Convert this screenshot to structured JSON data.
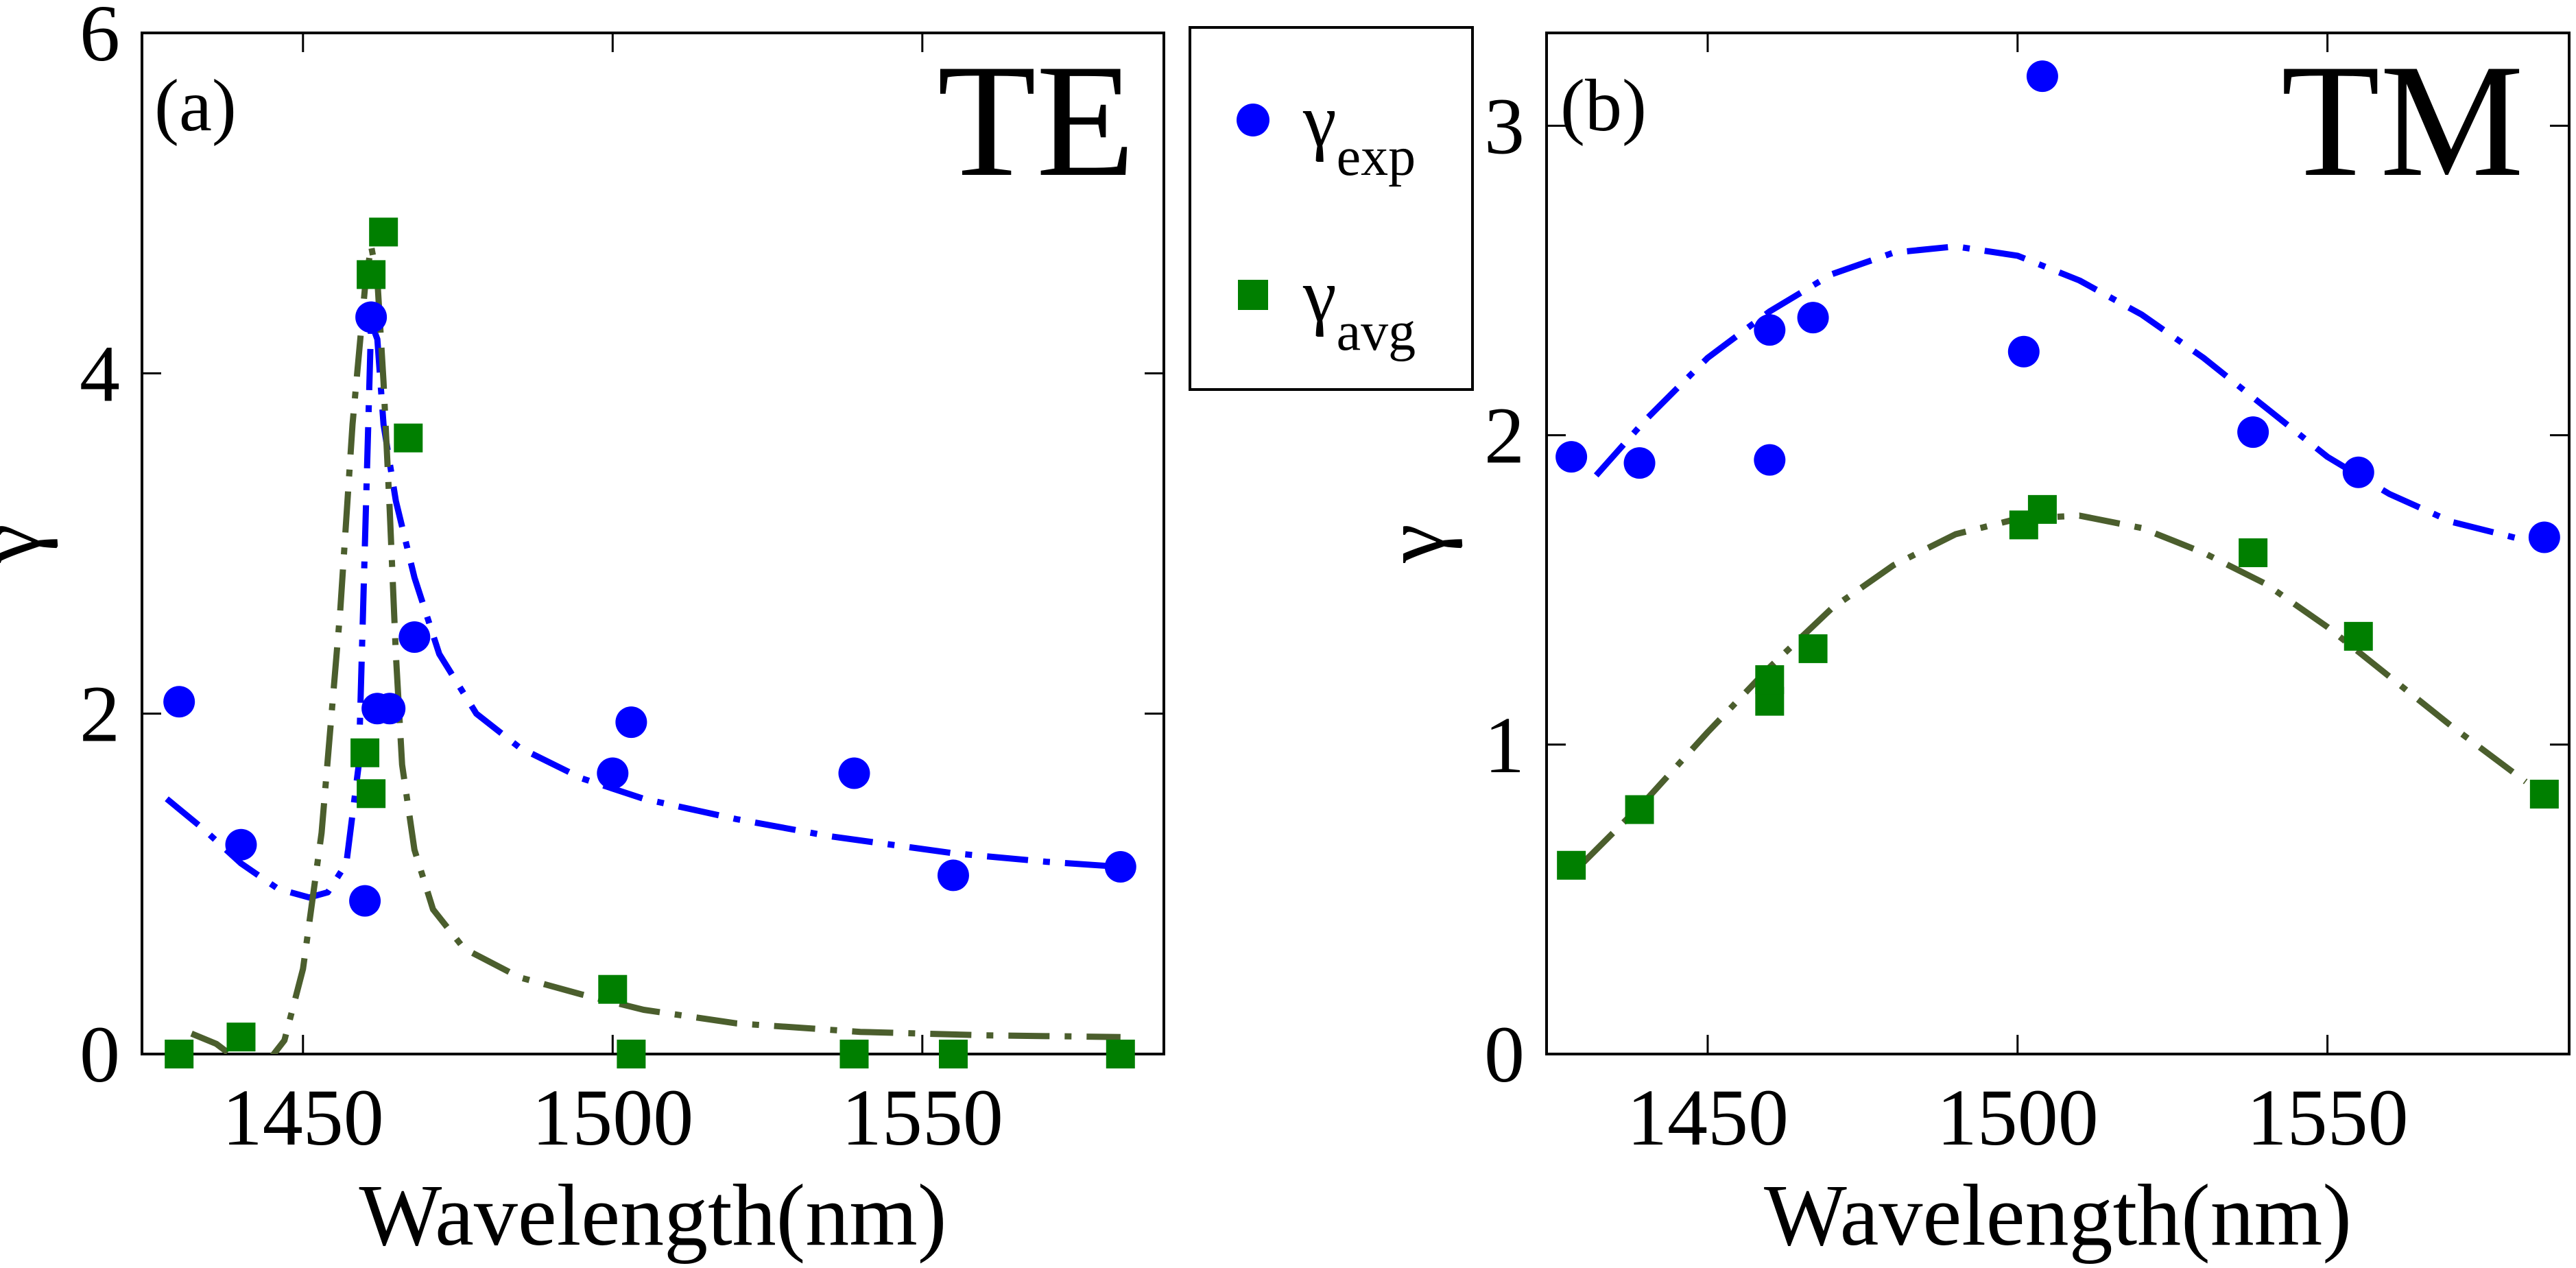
{
  "chart_data": [
    {
      "type": "scatter",
      "panel_tag": "(a)",
      "mode": "TE",
      "xlabel": "Wavelength(nm)",
      "ylabel": "γ",
      "xlim": [
        1424,
        1589
      ],
      "ylim": [
        0,
        6
      ],
      "xticks": [
        1450,
        1500,
        1550
      ],
      "yticks": [
        0,
        2,
        4,
        6
      ],
      "grid": false,
      "series": [
        {
          "name": "γexp",
          "role": "exp",
          "marker": "circle",
          "color": "#0000ff",
          "points": [
            [
              1430,
              2.07
            ],
            [
              1440,
              1.23
            ],
            [
              1460,
              0.9
            ],
            [
              1461,
              4.33
            ],
            [
              1462,
              2.03
            ],
            [
              1464,
              2.03
            ],
            [
              1468,
              2.45
            ],
            [
              1500,
              1.65
            ],
            [
              1503,
              1.95
            ],
            [
              1539,
              1.65
            ],
            [
              1555,
              1.05
            ],
            [
              1582,
              1.1
            ]
          ]
        },
        {
          "name": "γavg",
          "role": "avg",
          "marker": "square",
          "color": "#007f00",
          "points": [
            [
              1430,
              0.0
            ],
            [
              1440,
              0.1
            ],
            [
              1460,
              1.77
            ],
            [
              1461,
              1.53
            ],
            [
              1461,
              4.58
            ],
            [
              1463,
              4.83
            ],
            [
              1467,
              3.62
            ],
            [
              1500,
              0.38
            ],
            [
              1503,
              0.0
            ],
            [
              1539,
              0.0
            ],
            [
              1555,
              0.0
            ],
            [
              1582,
              0.0
            ]
          ]
        }
      ],
      "fits": [
        {
          "color": "#0000ff",
          "style": "dash-dot",
          "points": [
            [
              1428,
              1.5
            ],
            [
              1434,
              1.32
            ],
            [
              1440,
              1.12
            ],
            [
              1446,
              0.97
            ],
            [
              1451,
              0.92
            ],
            [
              1454,
              0.95
            ],
            [
              1457,
              1.12
            ],
            [
              1459,
              1.7
            ],
            [
              1460,
              3.0
            ],
            [
              1461,
              4.3
            ],
            [
              1462,
              4.2
            ],
            [
              1463,
              3.7
            ],
            [
              1465,
              3.25
            ],
            [
              1468,
              2.8
            ],
            [
              1472,
              2.35
            ],
            [
              1478,
              2.0
            ],
            [
              1485,
              1.8
            ],
            [
              1495,
              1.62
            ],
            [
              1505,
              1.5
            ],
            [
              1520,
              1.38
            ],
            [
              1535,
              1.28
            ],
            [
              1555,
              1.18
            ],
            [
              1570,
              1.13
            ],
            [
              1582,
              1.1
            ]
          ]
        },
        {
          "color": "#4b5e2d",
          "style": "dash-dot",
          "points": [
            [
              1432,
              0.12
            ],
            [
              1436,
              0.06
            ],
            [
              1440,
              -0.05
            ],
            [
              1444,
              -0.06
            ],
            [
              1447,
              0.08
            ],
            [
              1450,
              0.5
            ],
            [
              1453,
              1.3
            ],
            [
              1456,
              2.6
            ],
            [
              1458,
              3.7
            ],
            [
              1460,
              4.5
            ],
            [
              1461,
              4.75
            ],
            [
              1462,
              4.55
            ],
            [
              1463,
              3.95
            ],
            [
              1464,
              3.2
            ],
            [
              1465,
              2.35
            ],
            [
              1466,
              1.7
            ],
            [
              1468,
              1.2
            ],
            [
              1471,
              0.85
            ],
            [
              1476,
              0.62
            ],
            [
              1485,
              0.45
            ],
            [
              1495,
              0.35
            ],
            [
              1505,
              0.26
            ],
            [
              1520,
              0.18
            ],
            [
              1540,
              0.13
            ],
            [
              1560,
              0.11
            ],
            [
              1582,
              0.1
            ]
          ]
        }
      ]
    },
    {
      "type": "scatter",
      "panel_tag": "(b)",
      "mode": "TM",
      "xlabel": "Wavelength(nm)",
      "ylabel": "γ",
      "xlim": [
        1424,
        1589
      ],
      "ylim": [
        0,
        3.3
      ],
      "xticks": [
        1450,
        1500,
        1550
      ],
      "yticks": [
        0,
        1,
        2,
        3
      ],
      "grid": false,
      "series": [
        {
          "name": "γexp",
          "role": "exp",
          "marker": "circle",
          "color": "#0000ff",
          "points": [
            [
              1428,
              1.93
            ],
            [
              1439,
              1.91
            ],
            [
              1460,
              1.92
            ],
            [
              1460,
              2.34
            ],
            [
              1467,
              2.38
            ],
            [
              1501,
              2.27
            ],
            [
              1504,
              3.16
            ],
            [
              1538,
              2.01
            ],
            [
              1555,
              1.88
            ],
            [
              1585,
              1.67
            ]
          ]
        },
        {
          "name": "γavg",
          "role": "avg",
          "marker": "square",
          "color": "#007f00",
          "points": [
            [
              1428,
              0.61
            ],
            [
              1439,
              0.79
            ],
            [
              1460,
              1.14
            ],
            [
              1460,
              1.21
            ],
            [
              1467,
              1.31
            ],
            [
              1501,
              1.71
            ],
            [
              1504,
              1.76
            ],
            [
              1538,
              1.62
            ],
            [
              1555,
              1.35
            ],
            [
              1585,
              0.84
            ]
          ]
        }
      ],
      "fits": [
        {
          "color": "#0000ff",
          "style": "dash-dot",
          "points": [
            [
              1432,
              1.87
            ],
            [
              1440,
              2.05
            ],
            [
              1450,
              2.25
            ],
            [
              1460,
              2.4
            ],
            [
              1470,
              2.52
            ],
            [
              1480,
              2.59
            ],
            [
              1490,
              2.61
            ],
            [
              1500,
              2.58
            ],
            [
              1510,
              2.5
            ],
            [
              1520,
              2.39
            ],
            [
              1530,
              2.25
            ],
            [
              1540,
              2.09
            ],
            [
              1550,
              1.93
            ],
            [
              1560,
              1.81
            ],
            [
              1570,
              1.72
            ],
            [
              1582,
              1.66
            ]
          ]
        },
        {
          "color": "#4b5e2d",
          "style": "dash-dot",
          "points": [
            [
              1430,
              0.62
            ],
            [
              1440,
              0.82
            ],
            [
              1450,
              1.04
            ],
            [
              1460,
              1.25
            ],
            [
              1470,
              1.44
            ],
            [
              1480,
              1.58
            ],
            [
              1490,
              1.68
            ],
            [
              1500,
              1.73
            ],
            [
              1510,
              1.74
            ],
            [
              1520,
              1.7
            ],
            [
              1530,
              1.62
            ],
            [
              1540,
              1.52
            ],
            [
              1550,
              1.38
            ],
            [
              1560,
              1.22
            ],
            [
              1570,
              1.06
            ],
            [
              1582,
              0.88
            ]
          ]
        }
      ]
    }
  ],
  "legend": {
    "items": [
      {
        "symbol": "γ",
        "sub": "exp",
        "marker": "circle",
        "color": "#0000ff"
      },
      {
        "symbol": "γ",
        "sub": "avg",
        "marker": "square",
        "color": "#007f00"
      }
    ]
  }
}
